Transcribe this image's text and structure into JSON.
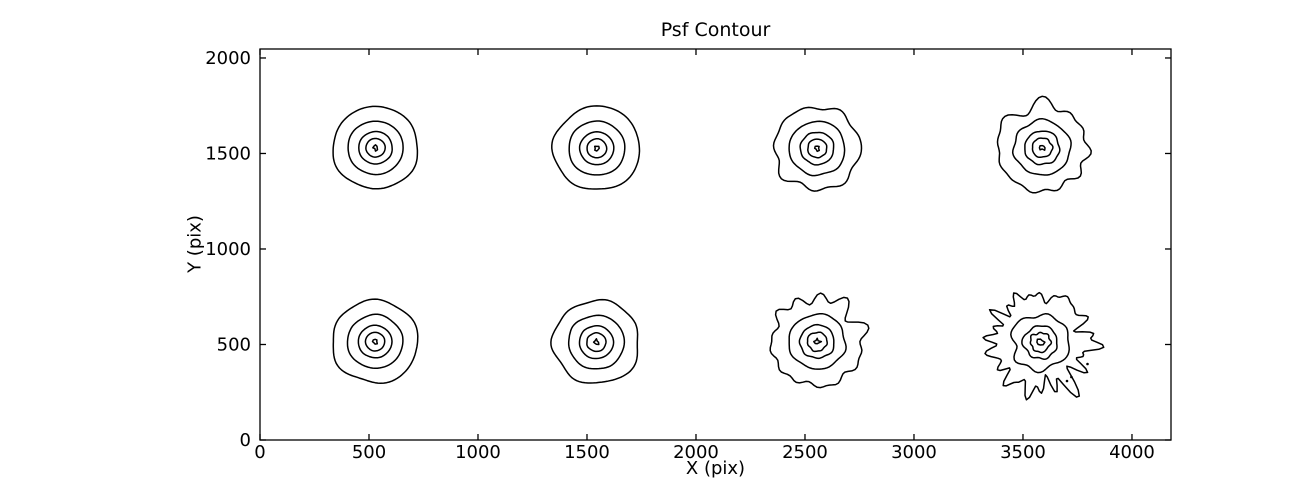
{
  "colors": {
    "background": "#ffffff",
    "line": "#000000",
    "text": "#000000"
  },
  "chart_data": {
    "type": "contour",
    "title": "Psf Contour",
    "xlabel": "X (pix)",
    "ylabel": "Y (pix)",
    "xlim": [
      0,
      4179
    ],
    "ylim": [
      0,
      2047
    ],
    "xticks": [
      0,
      500,
      1000,
      1500,
      2000,
      2500,
      3000,
      3500,
      4000
    ],
    "yticks": [
      0,
      500,
      1000,
      1500,
      2000
    ],
    "grid": false,
    "legend": "none",
    "description": "8 PSF contour spots in a 2x4 grid; contour noise increases toward larger X, bottom-right spot is very jagged",
    "blobs": [
      {
        "cx": 530,
        "cy": 1530,
        "levels": [
          196,
          127,
          77,
          44,
          11
        ],
        "noise": 0.013,
        "freq_lo": 3,
        "freq_hi": 6,
        "seed": 11
      },
      {
        "cx": 1545,
        "cy": 1527,
        "levels": [
          199,
          129,
          78,
          45,
          11
        ],
        "noise": 0.016,
        "freq_lo": 3,
        "freq_hi": 6,
        "seed": 22
      },
      {
        "cx": 2556,
        "cy": 1527,
        "levels": [
          197,
          128,
          77,
          44,
          11
        ],
        "noise": 0.03,
        "freq_lo": 4,
        "freq_hi": 9,
        "seed": 33
      },
      {
        "cx": 3588,
        "cy": 1530,
        "levels": [
          206,
          130,
          80,
          46,
          12
        ],
        "noise": 0.046,
        "freq_lo": 4,
        "freq_hi": 12,
        "seed": 44
      },
      {
        "cx": 528,
        "cy": 515,
        "levels": [
          197,
          127,
          77,
          44,
          11
        ],
        "noise": 0.015,
        "freq_lo": 3,
        "freq_hi": 6,
        "seed": 55
      },
      {
        "cx": 1543,
        "cy": 512,
        "levels": [
          198,
          128,
          78,
          44,
          11
        ],
        "noise": 0.02,
        "freq_lo": 3,
        "freq_hi": 7,
        "seed": 66
      },
      {
        "cx": 2556,
        "cy": 515,
        "levels": [
          210,
          130,
          79,
          45,
          12
        ],
        "noise": 0.055,
        "freq_lo": 5,
        "freq_hi": 14,
        "seed": 77
      },
      {
        "cx": 3580,
        "cy": 512,
        "levels": [
          225,
          132,
          78,
          46,
          16
        ],
        "noise": 0.1,
        "freq_lo": 6,
        "freq_hi": 26,
        "seed": 88
      }
    ],
    "specks": [
      [
        3702,
        309
      ],
      [
        3722,
        330
      ],
      [
        3796,
        398
      ]
    ]
  }
}
